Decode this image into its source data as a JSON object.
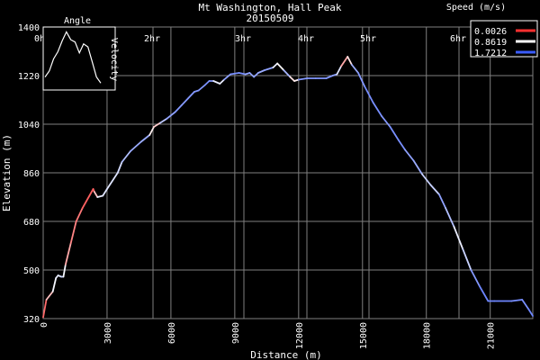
{
  "chart_data": {
    "type": "line",
    "title": "Mt Washington, Hall Peak",
    "subtitle": "20150509",
    "xlabel": "Distance (m)",
    "ylabel": "Elevation (m)",
    "xlim": [
      0,
      23000
    ],
    "ylim": [
      320,
      1400
    ],
    "x_ticks": [
      "0",
      "3000",
      "6000",
      "9000",
      "12000",
      "15000",
      "18000",
      "21000"
    ],
    "y_ticks": [
      "320",
      "500",
      "680",
      "860",
      "1040",
      "1220",
      "1400"
    ],
    "time_ticks": [
      "0h",
      "2hr",
      "3hr",
      "4hr",
      "5hr",
      "6hr"
    ],
    "grid": true,
    "legend": {
      "title": "Speed (m/s)",
      "placement": "top-right",
      "entries": [
        {
          "label": "0.0026",
          "color": "#ff3030"
        },
        {
          "label": "0.8619",
          "color": "#ffffff"
        },
        {
          "label": "1.7212",
          "color": "#3a5cff"
        }
      ]
    },
    "series": [
      {
        "points": [
          [
            0,
            325,
            0.2
          ],
          [
            150,
            390,
            0.3
          ],
          [
            450,
            420,
            0.9
          ],
          [
            600,
            470,
            0.9
          ],
          [
            700,
            480,
            1.0
          ],
          [
            850,
            475,
            1.0
          ],
          [
            950,
            475,
            1.2
          ],
          [
            1050,
            520,
            0.6
          ],
          [
            1300,
            600,
            0.4
          ],
          [
            1550,
            680,
            0.3
          ],
          [
            1850,
            730,
            0.3
          ],
          [
            2350,
            800,
            0.1
          ],
          [
            2400,
            790,
            0.3
          ],
          [
            2550,
            770,
            0.9
          ],
          [
            2800,
            775,
            1.0
          ],
          [
            3000,
            800,
            1.0
          ],
          [
            3500,
            860,
            1.0
          ],
          [
            3700,
            900,
            1.1
          ],
          [
            4100,
            940,
            1.3
          ],
          [
            4600,
            975,
            1.3
          ],
          [
            5000,
            1000,
            1.3
          ],
          [
            5200,
            1030,
            0.3
          ],
          [
            5500,
            1045,
            1.0
          ],
          [
            5800,
            1060,
            1.3
          ],
          [
            6200,
            1085,
            1.4
          ],
          [
            6500,
            1110,
            1.4
          ],
          [
            6800,
            1135,
            1.4
          ],
          [
            7100,
            1160,
            1.4
          ],
          [
            7300,
            1165,
            1.4
          ],
          [
            7600,
            1185,
            1.4
          ],
          [
            7800,
            1200,
            1.5
          ],
          [
            8000,
            1200,
            1.3
          ],
          [
            8300,
            1190,
            0.6
          ],
          [
            8500,
            1205,
            1.3
          ],
          [
            8800,
            1225,
            1.4
          ],
          [
            9200,
            1230,
            1.5
          ],
          [
            9500,
            1225,
            1.4
          ],
          [
            9700,
            1230,
            1.3
          ],
          [
            9900,
            1215,
            1.4
          ],
          [
            10100,
            1230,
            1.3
          ],
          [
            10400,
            1240,
            1.3
          ],
          [
            10800,
            1250,
            1.4
          ],
          [
            11000,
            1265,
            0.5
          ],
          [
            11300,
            1240,
            1.2
          ],
          [
            11600,
            1215,
            1.3
          ],
          [
            11800,
            1200,
            0.2
          ],
          [
            12000,
            1205,
            1.4
          ],
          [
            12400,
            1210,
            1.4
          ],
          [
            12800,
            1210,
            1.4
          ],
          [
            13300,
            1210,
            1.4
          ],
          [
            13600,
            1220,
            1.4
          ],
          [
            13800,
            1225,
            1.3
          ],
          [
            14000,
            1255,
            0.7
          ],
          [
            14300,
            1290,
            0.3
          ],
          [
            14500,
            1260,
            1.2
          ],
          [
            14800,
            1230,
            1.4
          ],
          [
            15100,
            1180,
            1.4
          ],
          [
            15500,
            1120,
            1.5
          ],
          [
            15900,
            1070,
            1.4
          ],
          [
            16300,
            1030,
            1.4
          ],
          [
            16700,
            980,
            1.5
          ],
          [
            17000,
            945,
            1.4
          ],
          [
            17400,
            905,
            1.3
          ],
          [
            17800,
            855,
            1.3
          ],
          [
            18200,
            815,
            0.9
          ],
          [
            18600,
            780,
            1.3
          ],
          [
            18900,
            730,
            1.4
          ],
          [
            19300,
            660,
            1.0
          ],
          [
            19700,
            580,
            0.9
          ],
          [
            20100,
            500,
            1.3
          ],
          [
            20500,
            440,
            1.5
          ],
          [
            20900,
            385,
            1.5
          ],
          [
            21200,
            385,
            1.5
          ],
          [
            22000,
            385,
            1.5
          ],
          [
            22500,
            390,
            1.4
          ],
          [
            22800,
            355,
            1.5
          ],
          [
            23000,
            330,
            1.5
          ]
        ]
      }
    ],
    "inset": {
      "labels": [
        "Angle",
        "Velocity"
      ],
      "values": [
        0.2,
        0.3,
        0.5,
        0.62,
        0.8,
        0.95,
        0.82,
        0.78,
        0.6,
        0.75,
        0.7,
        0.45,
        0.2,
        0.1
      ]
    }
  },
  "colors": {
    "background": "#000000",
    "grid": "#808080",
    "text": "#ffffff",
    "legend_border": "#ffffff"
  }
}
